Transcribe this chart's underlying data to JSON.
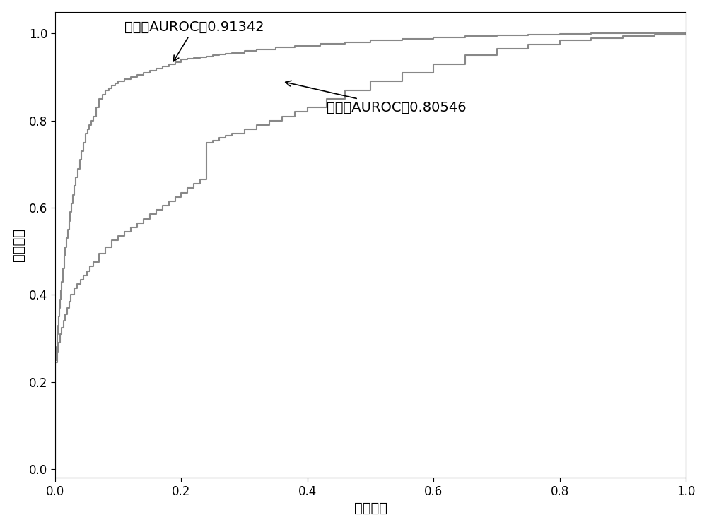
{
  "title": "",
  "xlabel": "假阳性率",
  "ylabel": "真阳性率",
  "line_color": "#888888",
  "line_width": 1.5,
  "xlim": [
    0.0,
    1.0
  ],
  "ylim": [
    -0.02,
    1.05
  ],
  "xticks": [
    0.0,
    0.2,
    0.4,
    0.6,
    0.8,
    1.0
  ],
  "yticks": [
    0.0,
    0.2,
    0.4,
    0.6,
    0.8,
    1.0
  ],
  "train_annotation_text": "训练集AUROC：0.91342",
  "test_annotation_text": "测试集AUROC：0.80546",
  "background_color": "#ffffff",
  "font_size": 14,
  "axis_label_fontsize": 14,
  "tick_fontsize": 12,
  "figsize": [
    10.0,
    7.46
  ],
  "dpi": 100,
  "train_fpr": [
    0.0,
    0.0,
    0.002,
    0.003,
    0.005,
    0.006,
    0.007,
    0.008,
    0.009,
    0.01,
    0.012,
    0.014,
    0.016,
    0.018,
    0.02,
    0.022,
    0.024,
    0.026,
    0.028,
    0.03,
    0.033,
    0.036,
    0.039,
    0.042,
    0.045,
    0.048,
    0.051,
    0.054,
    0.057,
    0.06,
    0.065,
    0.07,
    0.075,
    0.08,
    0.085,
    0.09,
    0.095,
    0.1,
    0.11,
    0.12,
    0.13,
    0.14,
    0.15,
    0.16,
    0.17,
    0.18,
    0.19,
    0.2,
    0.21,
    0.22,
    0.23,
    0.24,
    0.25,
    0.26,
    0.27,
    0.28,
    0.3,
    0.32,
    0.35,
    0.38,
    0.42,
    0.46,
    0.5,
    0.55,
    0.6,
    0.65,
    0.7,
    0.75,
    0.8,
    0.85,
    0.9,
    0.95,
    1.0
  ],
  "train_tpr": [
    0.0,
    0.25,
    0.28,
    0.31,
    0.33,
    0.35,
    0.37,
    0.39,
    0.41,
    0.43,
    0.46,
    0.49,
    0.51,
    0.53,
    0.55,
    0.57,
    0.59,
    0.61,
    0.63,
    0.65,
    0.67,
    0.69,
    0.71,
    0.73,
    0.75,
    0.77,
    0.78,
    0.79,
    0.8,
    0.81,
    0.83,
    0.85,
    0.86,
    0.87,
    0.875,
    0.88,
    0.885,
    0.89,
    0.895,
    0.9,
    0.905,
    0.91,
    0.915,
    0.92,
    0.925,
    0.93,
    0.935,
    0.94,
    0.942,
    0.944,
    0.946,
    0.948,
    0.95,
    0.952,
    0.954,
    0.956,
    0.96,
    0.964,
    0.968,
    0.972,
    0.976,
    0.98,
    0.984,
    0.988,
    0.991,
    0.994,
    0.996,
    0.998,
    0.999,
    1.0,
    1.0,
    1.0,
    1.0
  ],
  "test_fpr": [
    0.0,
    0.0,
    0.003,
    0.005,
    0.008,
    0.01,
    0.013,
    0.016,
    0.019,
    0.022,
    0.025,
    0.03,
    0.035,
    0.04,
    0.045,
    0.05,
    0.055,
    0.06,
    0.07,
    0.08,
    0.09,
    0.1,
    0.11,
    0.12,
    0.13,
    0.14,
    0.15,
    0.16,
    0.17,
    0.18,
    0.19,
    0.2,
    0.21,
    0.22,
    0.23,
    0.24,
    0.24,
    0.25,
    0.26,
    0.27,
    0.28,
    0.3,
    0.32,
    0.34,
    0.36,
    0.38,
    0.4,
    0.43,
    0.46,
    0.5,
    0.55,
    0.6,
    0.65,
    0.7,
    0.75,
    0.8,
    0.85,
    0.9,
    0.95,
    1.0
  ],
  "test_tpr": [
    0.0,
    0.245,
    0.27,
    0.29,
    0.31,
    0.325,
    0.34,
    0.355,
    0.37,
    0.385,
    0.4,
    0.415,
    0.425,
    0.435,
    0.445,
    0.455,
    0.465,
    0.475,
    0.495,
    0.51,
    0.525,
    0.535,
    0.545,
    0.555,
    0.565,
    0.575,
    0.585,
    0.595,
    0.605,
    0.615,
    0.625,
    0.635,
    0.645,
    0.655,
    0.665,
    0.675,
    0.75,
    0.755,
    0.76,
    0.765,
    0.77,
    0.78,
    0.79,
    0.8,
    0.81,
    0.82,
    0.83,
    0.85,
    0.87,
    0.89,
    0.91,
    0.93,
    0.95,
    0.965,
    0.975,
    0.985,
    0.99,
    0.995,
    0.998,
    1.0
  ]
}
